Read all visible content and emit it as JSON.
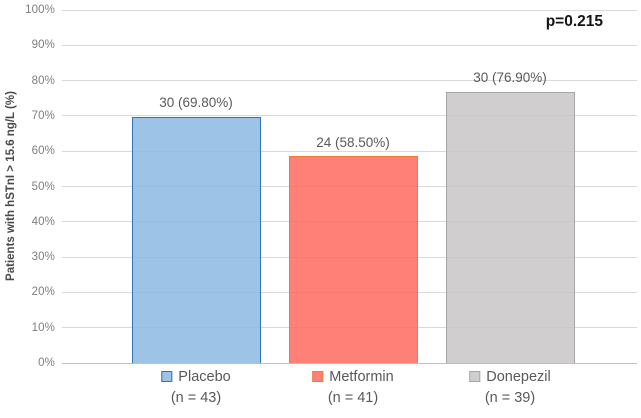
{
  "chart_data": {
    "type": "bar",
    "title": "",
    "xlabel": "",
    "ylabel": "Patients with hSTnI > 15.6 ng/L (%)",
    "ylim": [
      0,
      100
    ],
    "grid": true,
    "annotation": "p=0.215",
    "legend_position": "below-axis-category-labels",
    "yticks": [
      {
        "value": 0,
        "label": "0%"
      },
      {
        "value": 10,
        "label": "10%"
      },
      {
        "value": 20,
        "label": "20%"
      },
      {
        "value": 30,
        "label": "30%"
      },
      {
        "value": 40,
        "label": "40%"
      },
      {
        "value": 50,
        "label": "50%"
      },
      {
        "value": 60,
        "label": "60%"
      },
      {
        "value": 70,
        "label": "70%"
      },
      {
        "value": 80,
        "label": "80%"
      },
      {
        "value": 90,
        "label": "90%"
      },
      {
        "value": 100,
        "label": "100%"
      }
    ],
    "categories": [
      {
        "name": "Placebo",
        "n_label": "(n = 43)",
        "count": 30,
        "percent": 69.8,
        "data_label": "30 (69.80%)",
        "fill": "#9DC3E6",
        "border": "#2E75B6"
      },
      {
        "name": "Metformin",
        "n_label": "(n = 41)",
        "count": 24,
        "percent": 58.5,
        "data_label": "24 (58.50%)",
        "fill": "#FF8076",
        "border": "#ED7D31"
      },
      {
        "name": "Donepezil",
        "n_label": "(n = 39)",
        "count": 30,
        "percent": 76.9,
        "data_label": "30 (76.90%)",
        "fill": "#D0CECE",
        "border": "#A6A6A6"
      }
    ],
    "colors": {
      "gridline": "#D9D9D9",
      "axis_line": "#BFBFBF",
      "tick_text": "#7F7F7F",
      "label_text": "#595959",
      "annotation_text": "#141414"
    }
  }
}
